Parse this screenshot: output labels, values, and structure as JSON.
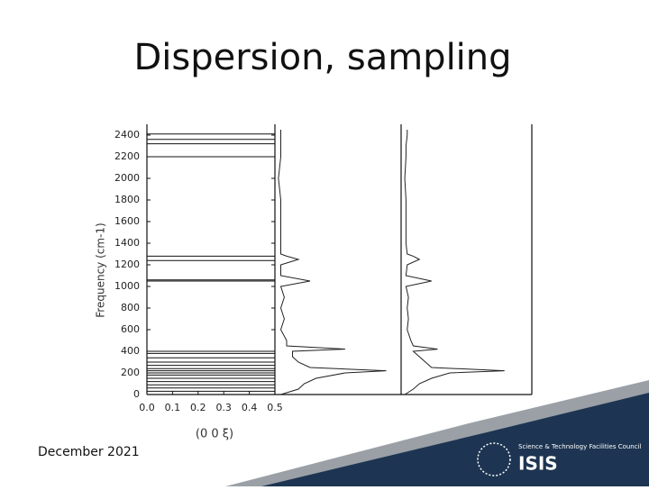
{
  "title": "Dispersion, sampling",
  "footer": {
    "date": "December 2021",
    "org": "Science & Technology Facilities Council",
    "logo": "ISIS"
  },
  "chart_data": {
    "type": "dispersion",
    "x_label": "(0 0 ξ)",
    "y_label": "Frequency (cm-1)",
    "xlim": [
      0,
      0.5
    ],
    "xticks": [
      {
        "value": 0,
        "label": "0.0"
      },
      0.1,
      0.2,
      0.3,
      0.4,
      0.5
    ],
    "ylim": [
      0,
      2500
    ],
    "yticks": [
      0,
      200,
      400,
      600,
      800,
      1000,
      1200,
      1400,
      1600,
      1800,
      2000,
      2200,
      2400
    ],
    "modes": [
      2410,
      2360,
      2320,
      2200,
      1280,
      1240,
      1060,
      1050,
      400,
      380,
      340,
      300,
      270,
      240,
      220,
      200,
      180,
      150,
      120,
      90,
      60,
      30
    ],
    "dos_lim": [
      0,
      1
    ],
    "frequencies": [
      0,
      50,
      100,
      150,
      200,
      220,
      250,
      300,
      350,
      400,
      420,
      450,
      500,
      600,
      700,
      800,
      900,
      1000,
      1050,
      1100,
      1200,
      1250,
      1280,
      1300,
      1400,
      1600,
      1800,
      2000,
      2200,
      2300,
      2400,
      2450
    ],
    "series": [
      {
        "color": "#222222",
        "values": [
          0.05,
          0.2,
          0.25,
          0.35,
          0.6,
          0.95,
          0.3,
          0.2,
          0.15,
          0.15,
          0.6,
          0.1,
          0.1,
          0.05,
          0.08,
          0.05,
          0.08,
          0.05,
          0.3,
          0.05,
          0.05,
          0.2,
          0.1,
          0.05,
          0.05,
          0.05,
          0.05,
          0.03,
          0.05,
          0.05,
          0.05,
          0.05
        ]
      },
      {
        "color": "#222222",
        "values": [
          0.03,
          0.1,
          0.15,
          0.25,
          0.4,
          0.85,
          0.25,
          0.2,
          0.15,
          0.1,
          0.3,
          0.1,
          0.08,
          0.05,
          0.06,
          0.05,
          0.06,
          0.04,
          0.25,
          0.04,
          0.05,
          0.15,
          0.1,
          0.05,
          0.04,
          0.04,
          0.04,
          0.03,
          0.04,
          0.04,
          0.05,
          0.05
        ]
      }
    ]
  }
}
